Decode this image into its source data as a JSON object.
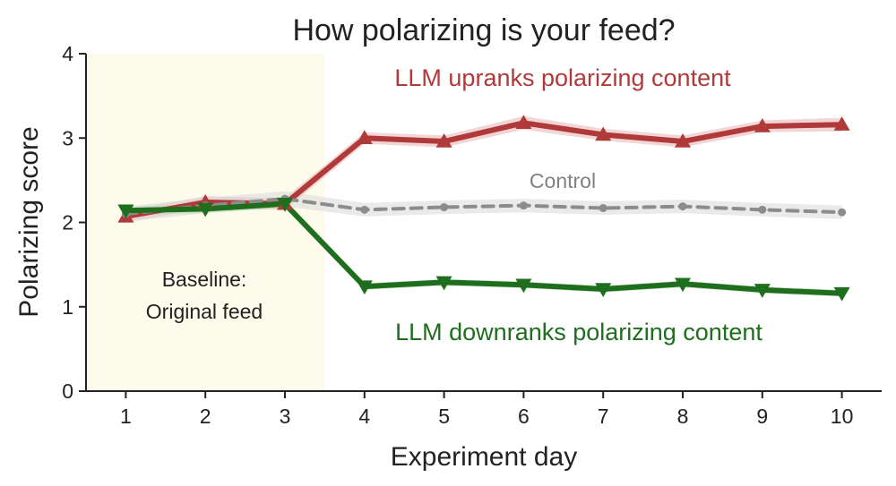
{
  "chart_data": {
    "type": "line",
    "title": "How polarizing is your feed?",
    "xlabel": "Experiment day",
    "ylabel": "Polarizing score",
    "x": [
      1,
      2,
      3,
      4,
      5,
      6,
      7,
      8,
      9,
      10
    ],
    "x_ticks": [
      "1",
      "2",
      "3",
      "4",
      "5",
      "6",
      "7",
      "8",
      "9",
      "10"
    ],
    "y_ticks": [
      "0",
      "1",
      "2",
      "3",
      "4"
    ],
    "xlim": [
      0.5,
      10.5
    ],
    "ylim": [
      0,
      4
    ],
    "grid": false,
    "series": [
      {
        "name": "LLM upranks polarizing content",
        "color": "#b03a3a",
        "band_color": "#e8b4b4",
        "marker": "triangle-up",
        "line_style": "solid",
        "values": [
          2.07,
          2.24,
          2.22,
          3.0,
          2.96,
          3.18,
          3.04,
          2.96,
          3.14,
          3.16
        ],
        "band": [
          0.07,
          0.07,
          0.07,
          0.07,
          0.07,
          0.08,
          0.07,
          0.07,
          0.07,
          0.08
        ]
      },
      {
        "name": "Control",
        "color": "#8c8c8c",
        "band_color": "#d9d9d9",
        "marker": "circle",
        "line_style": "dashed",
        "values": [
          2.1,
          2.2,
          2.28,
          2.15,
          2.18,
          2.2,
          2.17,
          2.19,
          2.15,
          2.12
        ],
        "band": [
          0.09,
          0.09,
          0.09,
          0.08,
          0.08,
          0.08,
          0.08,
          0.08,
          0.08,
          0.08
        ]
      },
      {
        "name": "LLM downranks polarizing content",
        "color": "#1e6e1e",
        "band_color": "#b9d8b4",
        "marker": "triangle-down",
        "line_style": "solid",
        "values": [
          2.14,
          2.16,
          2.22,
          1.24,
          1.29,
          1.26,
          1.21,
          1.27,
          1.2,
          1.16
        ],
        "band": [
          0.05,
          0.05,
          0.05,
          0.04,
          0.04,
          0.04,
          0.04,
          0.04,
          0.04,
          0.04
        ]
      }
    ],
    "baseline_region": {
      "x_range": [
        0.5,
        3.5
      ],
      "color": "#fcfbec",
      "label_line1": "Baseline:",
      "label_line2": "Original feed"
    },
    "annotations": {
      "up": "LLM upranks polarizing content",
      "control": "Control",
      "down": "LLM downranks polarizing content"
    }
  }
}
